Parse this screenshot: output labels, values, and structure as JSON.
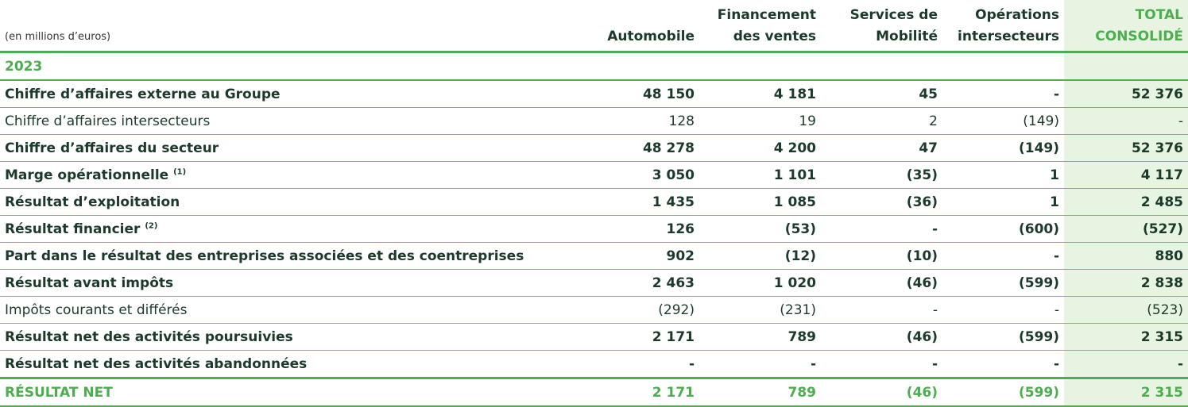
{
  "unit_label": "(en millions d’euros)",
  "columns": {
    "automobile": "Automobile",
    "financement": [
      "Financement",
      "des ventes"
    ],
    "mobilite": [
      "Services de",
      "Mobilité"
    ],
    "intersecteurs": [
      "Opérations",
      "intersecteurs"
    ],
    "total": [
      "TOTAL",
      "CONSOLIDÉ"
    ]
  },
  "year": "2023",
  "rows": [
    {
      "label": "Chiffre d’affaires externe au Groupe",
      "note": "",
      "values": [
        "48 150",
        "4 181",
        "45",
        "-",
        "52 376"
      ],
      "bold": true
    },
    {
      "label": "Chiffre d’affaires intersecteurs",
      "note": "",
      "values": [
        "128",
        "19",
        "2",
        "(149)",
        "-"
      ],
      "bold": false
    },
    {
      "label": "Chiffre d’affaires du secteur",
      "note": "",
      "values": [
        "48 278",
        "4 200",
        "47",
        "(149)",
        "52 376"
      ],
      "bold": true
    },
    {
      "label": "Marge opérationnelle",
      "note": "(1)",
      "values": [
        "3 050",
        "1 101",
        "(35)",
        "1",
        "4 117"
      ],
      "bold": true
    },
    {
      "label": "Résultat d’exploitation",
      "note": "",
      "values": [
        "1 435",
        "1 085",
        "(36)",
        "1",
        "2 485"
      ],
      "bold": true
    },
    {
      "label": "Résultat financier",
      "note": "(2)",
      "values": [
        "126",
        "(53)",
        "-",
        "(600)",
        "(527)"
      ],
      "bold": true
    },
    {
      "label": "Part dans le résultat des entreprises associées et des coentreprises",
      "note": "",
      "values": [
        "902",
        "(12)",
        "(10)",
        "-",
        "880"
      ],
      "bold": true
    },
    {
      "label": "Résultat avant impôts",
      "note": "",
      "values": [
        "2 463",
        "1 020",
        "(46)",
        "(599)",
        "2 838"
      ],
      "bold": true
    },
    {
      "label": "Impôts courants et différés",
      "note": "",
      "values": [
        "(292)",
        "(231)",
        "-",
        "-",
        "(523)"
      ],
      "bold": false
    },
    {
      "label": "Résultat net des activités poursuivies",
      "note": "",
      "values": [
        "2 171",
        "789",
        "(46)",
        "(599)",
        "2 315"
      ],
      "bold": true
    },
    {
      "label": "Résultat net des activités abandonnées",
      "note": "",
      "values": [
        "-",
        "-",
        "-",
        "-",
        "-"
      ],
      "bold": true
    }
  ],
  "net": {
    "label": "RÉSULTAT NET",
    "values": [
      "2 171",
      "789",
      "(46)",
      "(599)",
      "2 315"
    ]
  },
  "colors": {
    "green": "#4cae4f",
    "total_bg": "#e6f4e1",
    "text": "#1c3a2a"
  }
}
